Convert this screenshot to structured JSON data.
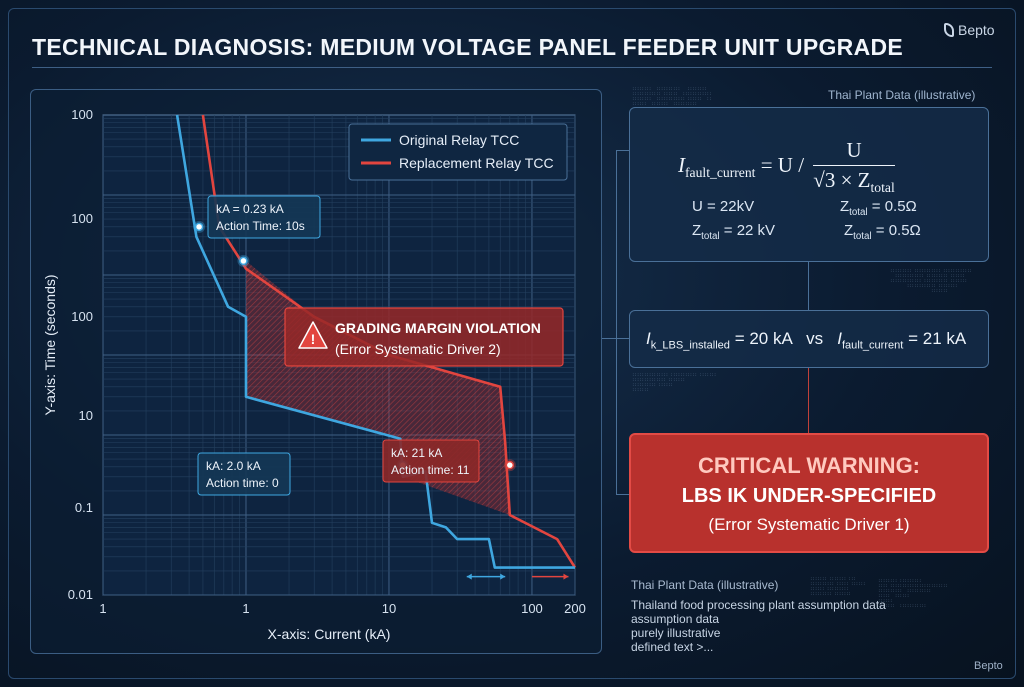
{
  "header": {
    "title": "TECHNICAL DIAGNOSIS: MEDIUM VOLTAGE PANEL FEEDER UNIT UPGRADE",
    "brand": "Bepto",
    "brand_footer": "Bepto"
  },
  "colors": {
    "original_relay": "#3fa7e0",
    "replacement_relay": "#e2453f",
    "warning_fill": "#b8312d",
    "panel_border": "#4a7098"
  },
  "chart_data": {
    "type": "line",
    "scale": "log-log",
    "xlabel": "X-axis: Current (kA)",
    "ylabel": "Y-axis: Time (seconds)",
    "x_ticks": [
      "1",
      "1",
      "10",
      "100",
      "200"
    ],
    "y_ticks": [
      "100",
      "100",
      "100",
      "10",
      "0.1",
      "0.01"
    ],
    "legend": {
      "placement": "top-right"
    },
    "series": [
      {
        "name": "Original Relay TCC",
        "points": [
          [
            0.33,
            10000
          ],
          [
            0.45,
            300
          ],
          [
            0.75,
            40
          ],
          [
            1.0,
            30
          ],
          [
            1.0,
            3
          ],
          [
            12,
            0.9
          ],
          [
            12.5,
            0.3
          ],
          [
            18,
            0.35
          ],
          [
            20,
            0.08
          ],
          [
            25,
            0.07
          ],
          [
            30,
            0.05
          ],
          [
            50,
            0.05
          ],
          [
            55,
            0.022
          ],
          [
            200,
            0.022
          ]
        ]
      },
      {
        "name": "Replacement Relay TCC",
        "points": [
          [
            0.5,
            10000
          ],
          [
            0.65,
            400
          ],
          [
            1.0,
            120
          ],
          [
            3,
            30
          ],
          [
            10,
            10
          ],
          [
            60,
            4
          ],
          [
            65,
            0.8
          ],
          [
            70,
            0.1
          ],
          [
            150,
            0.05
          ],
          [
            200,
            0.022
          ]
        ]
      }
    ],
    "annotations": {
      "point_a": {
        "line1": "kA = 0.23 kA",
        "line2": "Action Time: 10s"
      },
      "point_b": {
        "line1": "kA: 2.0 kA",
        "line2": "Action time: 0"
      },
      "point_c": {
        "line1": "kA: 21 kA",
        "line2": "Action time: 11"
      },
      "violation": {
        "title": "GRADING MARGIN VIOLATION",
        "subtitle": "(Error Systematic Driver 2)"
      }
    }
  },
  "formula_panel": {
    "label": "Thai Plant Data (illustrative)",
    "lhs": "I",
    "lhs_sub": "fault_current",
    "rhs_prefix": "= U /",
    "numerator": "U",
    "denominator": "√3 × Z",
    "denominator_sub": "total",
    "rows": [
      {
        "left": "U = 22kV",
        "right_base": "Z",
        "right_sub": "total",
        "right_tail": " = 0.5Ω"
      },
      {
        "left_base": "Z",
        "left_sub": "total",
        "left_tail": " = 22 kV",
        "right_base": "Z",
        "right_sub": "total",
        "right_tail": " = 0.5Ω"
      }
    ]
  },
  "comparison": {
    "a_base": "I",
    "a_sub": "k_LBS_installed",
    "a_tail": " = 20 kA",
    "vs": "vs",
    "b_base": "I",
    "b_sub": "fault_current",
    "b_tail": " = 21 kA"
  },
  "warning": {
    "line1": "CRITICAL WARNING:",
    "line2": "LBS IK UNDER-SPECIFIED",
    "line3": "(Error Systematic Driver 1)"
  },
  "notes": {
    "heading": "Thai Plant Data (illustrative)",
    "lines": [
      "Thailand food processing plant assumption data",
      "assumption data",
      "purely illustrative",
      "defined text >..."
    ]
  }
}
